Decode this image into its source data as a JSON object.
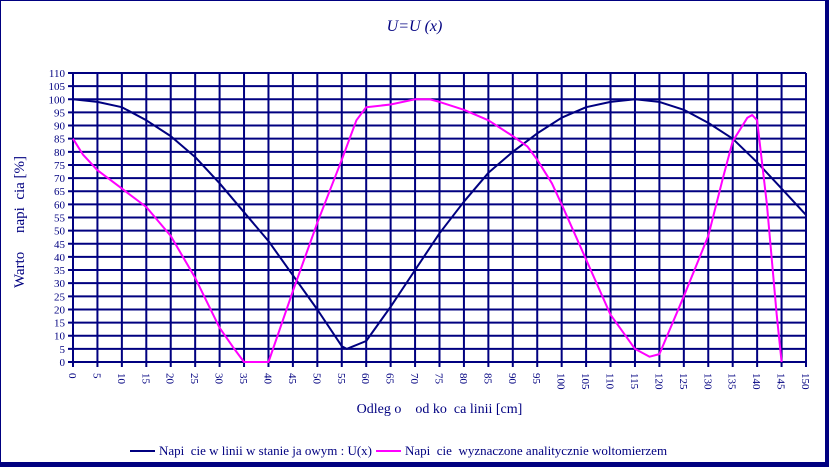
{
  "chart_data": {
    "type": "line",
    "title": "U=U (x)",
    "xlabel": "Odleg o    od ko  ca linii [cm]",
    "ylabel": "Warto     napi  cia [%]",
    "xlim": [
      0,
      150
    ],
    "ylim": [
      0,
      110
    ],
    "x_ticks": [
      0,
      5,
      10,
      15,
      20,
      25,
      30,
      35,
      40,
      45,
      50,
      55,
      60,
      65,
      70,
      75,
      80,
      85,
      90,
      95,
      100,
      105,
      110,
      115,
      120,
      125,
      130,
      135,
      140,
      145,
      150
    ],
    "y_ticks": [
      0,
      5,
      10,
      15,
      20,
      25,
      30,
      35,
      40,
      45,
      50,
      55,
      60,
      65,
      70,
      75,
      80,
      85,
      90,
      95,
      100,
      105,
      110
    ],
    "grid": true,
    "legend_position": "bottom",
    "series": [
      {
        "name": "Napi  cie w linii w stanie ja owym : U(x)",
        "color": "#000080",
        "x": [
          0,
          5,
          10,
          15,
          20,
          25,
          30,
          35,
          40,
          45,
          50,
          55,
          56,
          60,
          65,
          70,
          75,
          80,
          85,
          90,
          95,
          100,
          105,
          110,
          115,
          120,
          125,
          130,
          135,
          140,
          145,
          150
        ],
        "y": [
          100,
          99,
          97,
          92,
          86,
          78,
          68,
          57,
          46,
          33,
          20,
          6,
          5,
          8,
          21,
          35,
          49,
          61,
          72,
          80,
          87,
          93,
          97,
          99,
          100,
          99,
          96,
          91,
          85,
          76,
          66,
          56
        ]
      },
      {
        "name": "Napi  cie  wyznaczone analitycznie woltomierzem",
        "color": "#ff00ff",
        "x": [
          0,
          2,
          5,
          10,
          15,
          20,
          25,
          30,
          33,
          35,
          40,
          45,
          50,
          55,
          58,
          60,
          65,
          70,
          73,
          75,
          80,
          85,
          90,
          93,
          95,
          98,
          100,
          105,
          110,
          115,
          118,
          120,
          125,
          130,
          133,
          135,
          138,
          139,
          140,
          142,
          144,
          145
        ],
        "y": [
          85,
          79,
          73,
          66,
          59,
          48,
          32,
          13,
          5,
          0,
          0,
          27,
          53,
          77,
          92,
          97,
          98,
          100,
          100,
          99,
          96,
          92,
          86,
          82,
          77,
          68,
          60,
          39,
          18,
          5,
          2,
          3,
          25,
          48,
          70,
          84,
          93,
          94,
          92,
          60,
          18,
          0
        ]
      }
    ]
  },
  "legend": {
    "items": [
      {
        "label": "Napi  cie w linii w stanie ja owym : U(x)",
        "color": "#000080"
      },
      {
        "label": "Napi  cie  wyznaczone analitycznie woltomierzem",
        "color": "#ff00ff"
      }
    ]
  },
  "colors": {
    "grid": "#000080",
    "text": "#000080",
    "background": "#ffffff"
  }
}
